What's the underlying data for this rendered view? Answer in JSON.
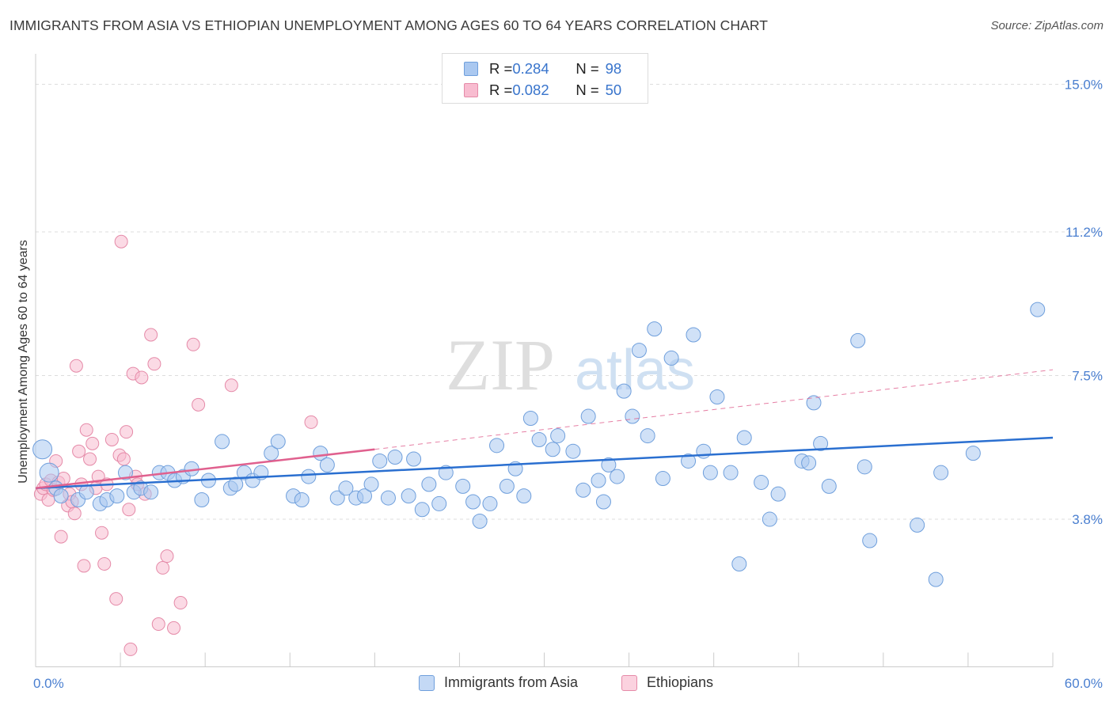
{
  "header": {
    "title": "IMMIGRANTS FROM ASIA VS ETHIOPIAN UNEMPLOYMENT AMONG AGES 60 TO 64 YEARS CORRELATION CHART",
    "source": "Source: ZipAtlas.com"
  },
  "watermark": {
    "zip": "ZIP",
    "atlas": "atlas"
  },
  "legend": {
    "rows": [
      {
        "r_label": "R = ",
        "r_value": "0.284",
        "n_label": "N = ",
        "n_value": "98"
      },
      {
        "r_label": "R = ",
        "r_value": "0.082",
        "n_label": "N = ",
        "n_value": "50"
      }
    ]
  },
  "bottom_legend": {
    "items": [
      {
        "label": "Immigrants from Asia"
      },
      {
        "label": "Ethiopians"
      }
    ]
  },
  "colors": {
    "blue_fill": "#aac8f0",
    "blue_stroke": "#6f9fdc",
    "blue_line": "#2a6fd0",
    "pink_fill": "#f8bcd0",
    "pink_stroke": "#e58aa8",
    "pink_line": "#e0608e",
    "axis_text": "#4a7fd0",
    "grid": "#dddddd"
  },
  "chart_data": {
    "type": "scatter",
    "title": "IMMIGRANTS FROM ASIA VS ETHIOPIAN UNEMPLOYMENT AMONG AGES 60 TO 64 YEARS CORRELATION CHART",
    "xlabel": "",
    "ylabel": "Unemployment Among Ages 60 to 64 years",
    "xlim": [
      0,
      60
    ],
    "ylim": [
      0,
      15.5
    ],
    "x_tick_labels": [
      {
        "value": 0,
        "label": "0.0%"
      },
      {
        "value": 60,
        "label": "60.0%"
      }
    ],
    "y_tick_labels": [
      {
        "value": 3.8,
        "label": "3.8%"
      },
      {
        "value": 7.5,
        "label": "7.5%"
      },
      {
        "value": 11.2,
        "label": "11.2%"
      },
      {
        "value": 15.0,
        "label": "15.0%"
      }
    ],
    "series": [
      {
        "name": "Immigrants from Asia",
        "color": "#aac8f0",
        "points": [
          [
            0.4,
            5.6
          ],
          [
            0.8,
            5.0
          ],
          [
            1.2,
            4.6
          ],
          [
            1.5,
            4.4
          ],
          [
            2.5,
            4.3
          ],
          [
            3.0,
            4.5
          ],
          [
            3.8,
            4.2
          ],
          [
            4.2,
            4.3
          ],
          [
            4.8,
            4.4
          ],
          [
            5.3,
            5.0
          ],
          [
            5.8,
            4.5
          ],
          [
            6.2,
            4.6
          ],
          [
            6.8,
            4.5
          ],
          [
            7.3,
            5.0
          ],
          [
            7.8,
            5.0
          ],
          [
            8.2,
            4.8
          ],
          [
            8.7,
            4.9
          ],
          [
            9.2,
            5.1
          ],
          [
            9.8,
            4.3
          ],
          [
            10.2,
            4.8
          ],
          [
            11.0,
            5.8
          ],
          [
            11.5,
            4.6
          ],
          [
            11.8,
            4.7
          ],
          [
            12.3,
            5.0
          ],
          [
            12.8,
            4.8
          ],
          [
            13.3,
            5.0
          ],
          [
            13.9,
            5.5
          ],
          [
            14.3,
            5.8
          ],
          [
            15.2,
            4.4
          ],
          [
            15.7,
            4.3
          ],
          [
            16.1,
            4.9
          ],
          [
            16.8,
            5.5
          ],
          [
            17.2,
            5.2
          ],
          [
            17.8,
            4.35
          ],
          [
            18.3,
            4.6
          ],
          [
            18.9,
            4.35
          ],
          [
            19.4,
            4.4
          ],
          [
            19.8,
            4.7
          ],
          [
            20.3,
            5.3
          ],
          [
            20.8,
            4.35
          ],
          [
            21.2,
            5.4
          ],
          [
            22.0,
            4.4
          ],
          [
            22.3,
            5.35
          ],
          [
            22.8,
            4.05
          ],
          [
            23.2,
            4.7
          ],
          [
            23.8,
            4.2
          ],
          [
            24.2,
            5.0
          ],
          [
            25.2,
            4.65
          ],
          [
            25.8,
            4.25
          ],
          [
            26.2,
            3.75
          ],
          [
            26.8,
            4.2
          ],
          [
            27.2,
            5.7
          ],
          [
            27.8,
            4.65
          ],
          [
            28.3,
            5.1
          ],
          [
            28.8,
            4.4
          ],
          [
            29.2,
            6.4
          ],
          [
            29.7,
            5.85
          ],
          [
            30.5,
            5.6
          ],
          [
            30.8,
            5.95
          ],
          [
            31.7,
            5.55
          ],
          [
            32.3,
            4.55
          ],
          [
            32.6,
            6.45
          ],
          [
            33.2,
            4.8
          ],
          [
            33.5,
            4.25
          ],
          [
            33.8,
            5.2
          ],
          [
            34.3,
            4.9
          ],
          [
            34.7,
            7.1
          ],
          [
            35.2,
            6.45
          ],
          [
            35.6,
            8.15
          ],
          [
            36.1,
            5.95
          ],
          [
            36.5,
            8.7
          ],
          [
            37.0,
            4.85
          ],
          [
            37.5,
            7.95
          ],
          [
            38.5,
            5.3
          ],
          [
            38.8,
            8.55
          ],
          [
            39.4,
            5.55
          ],
          [
            39.8,
            5.0
          ],
          [
            40.2,
            6.95
          ],
          [
            41.0,
            5.0
          ],
          [
            41.5,
            2.65
          ],
          [
            41.8,
            5.9
          ],
          [
            42.8,
            4.75
          ],
          [
            43.3,
            3.8
          ],
          [
            43.8,
            4.45
          ],
          [
            45.2,
            5.3
          ],
          [
            45.6,
            5.25
          ],
          [
            45.9,
            6.8
          ],
          [
            46.3,
            5.75
          ],
          [
            46.8,
            4.65
          ],
          [
            48.5,
            8.4
          ],
          [
            48.9,
            5.15
          ],
          [
            49.2,
            3.25
          ],
          [
            52.0,
            3.65
          ],
          [
            53.1,
            2.25
          ],
          [
            53.4,
            5.0
          ],
          [
            55.3,
            5.5
          ],
          [
            59.1,
            9.2
          ]
        ]
      },
      {
        "name": "Ethiopians",
        "color": "#f8bcd0",
        "points": [
          [
            0.3,
            4.45
          ],
          [
            0.45,
            4.6
          ],
          [
            0.6,
            4.7
          ],
          [
            0.75,
            4.3
          ],
          [
            0.9,
            4.8
          ],
          [
            1.05,
            4.55
          ],
          [
            1.2,
            5.3
          ],
          [
            1.35,
            4.75
          ],
          [
            1.5,
            3.35
          ],
          [
            1.65,
            4.85
          ],
          [
            1.9,
            4.15
          ],
          [
            2.0,
            4.45
          ],
          [
            2.15,
            4.25
          ],
          [
            2.3,
            3.95
          ],
          [
            2.4,
            7.75
          ],
          [
            2.55,
            5.55
          ],
          [
            2.7,
            4.7
          ],
          [
            2.85,
            2.6
          ],
          [
            3.0,
            6.1
          ],
          [
            3.2,
            5.35
          ],
          [
            3.35,
            5.75
          ],
          [
            3.55,
            4.6
          ],
          [
            3.7,
            4.9
          ],
          [
            3.9,
            3.45
          ],
          [
            4.05,
            2.65
          ],
          [
            4.2,
            4.7
          ],
          [
            4.5,
            5.85
          ],
          [
            4.75,
            1.75
          ],
          [
            4.95,
            5.45
          ],
          [
            5.05,
            10.95
          ],
          [
            5.2,
            5.35
          ],
          [
            5.35,
            6.05
          ],
          [
            5.5,
            4.05
          ],
          [
            5.6,
            0.45
          ],
          [
            5.75,
            7.55
          ],
          [
            5.9,
            4.9
          ],
          [
            6.0,
            4.7
          ],
          [
            6.25,
            7.45
          ],
          [
            6.45,
            4.45
          ],
          [
            6.8,
            8.55
          ],
          [
            7.0,
            7.8
          ],
          [
            7.25,
            1.1
          ],
          [
            7.5,
            2.55
          ],
          [
            7.75,
            2.85
          ],
          [
            8.15,
            1.0
          ],
          [
            8.55,
            1.65
          ],
          [
            9.3,
            8.3
          ],
          [
            9.6,
            6.75
          ],
          [
            11.55,
            7.25
          ],
          [
            16.25,
            6.3
          ]
        ]
      }
    ],
    "trend_lines": [
      {
        "series": "Immigrants from Asia",
        "x": [
          0,
          60
        ],
        "y": [
          4.6,
          5.9
        ],
        "style": "solid"
      },
      {
        "series": "Ethiopians",
        "x": [
          0,
          20
        ],
        "y": [
          4.6,
          5.6
        ],
        "style": "solid"
      },
      {
        "series": "Ethiopians",
        "x": [
          20,
          60
        ],
        "y": [
          5.6,
          7.65
        ],
        "style": "dashed"
      }
    ],
    "grid": true
  }
}
